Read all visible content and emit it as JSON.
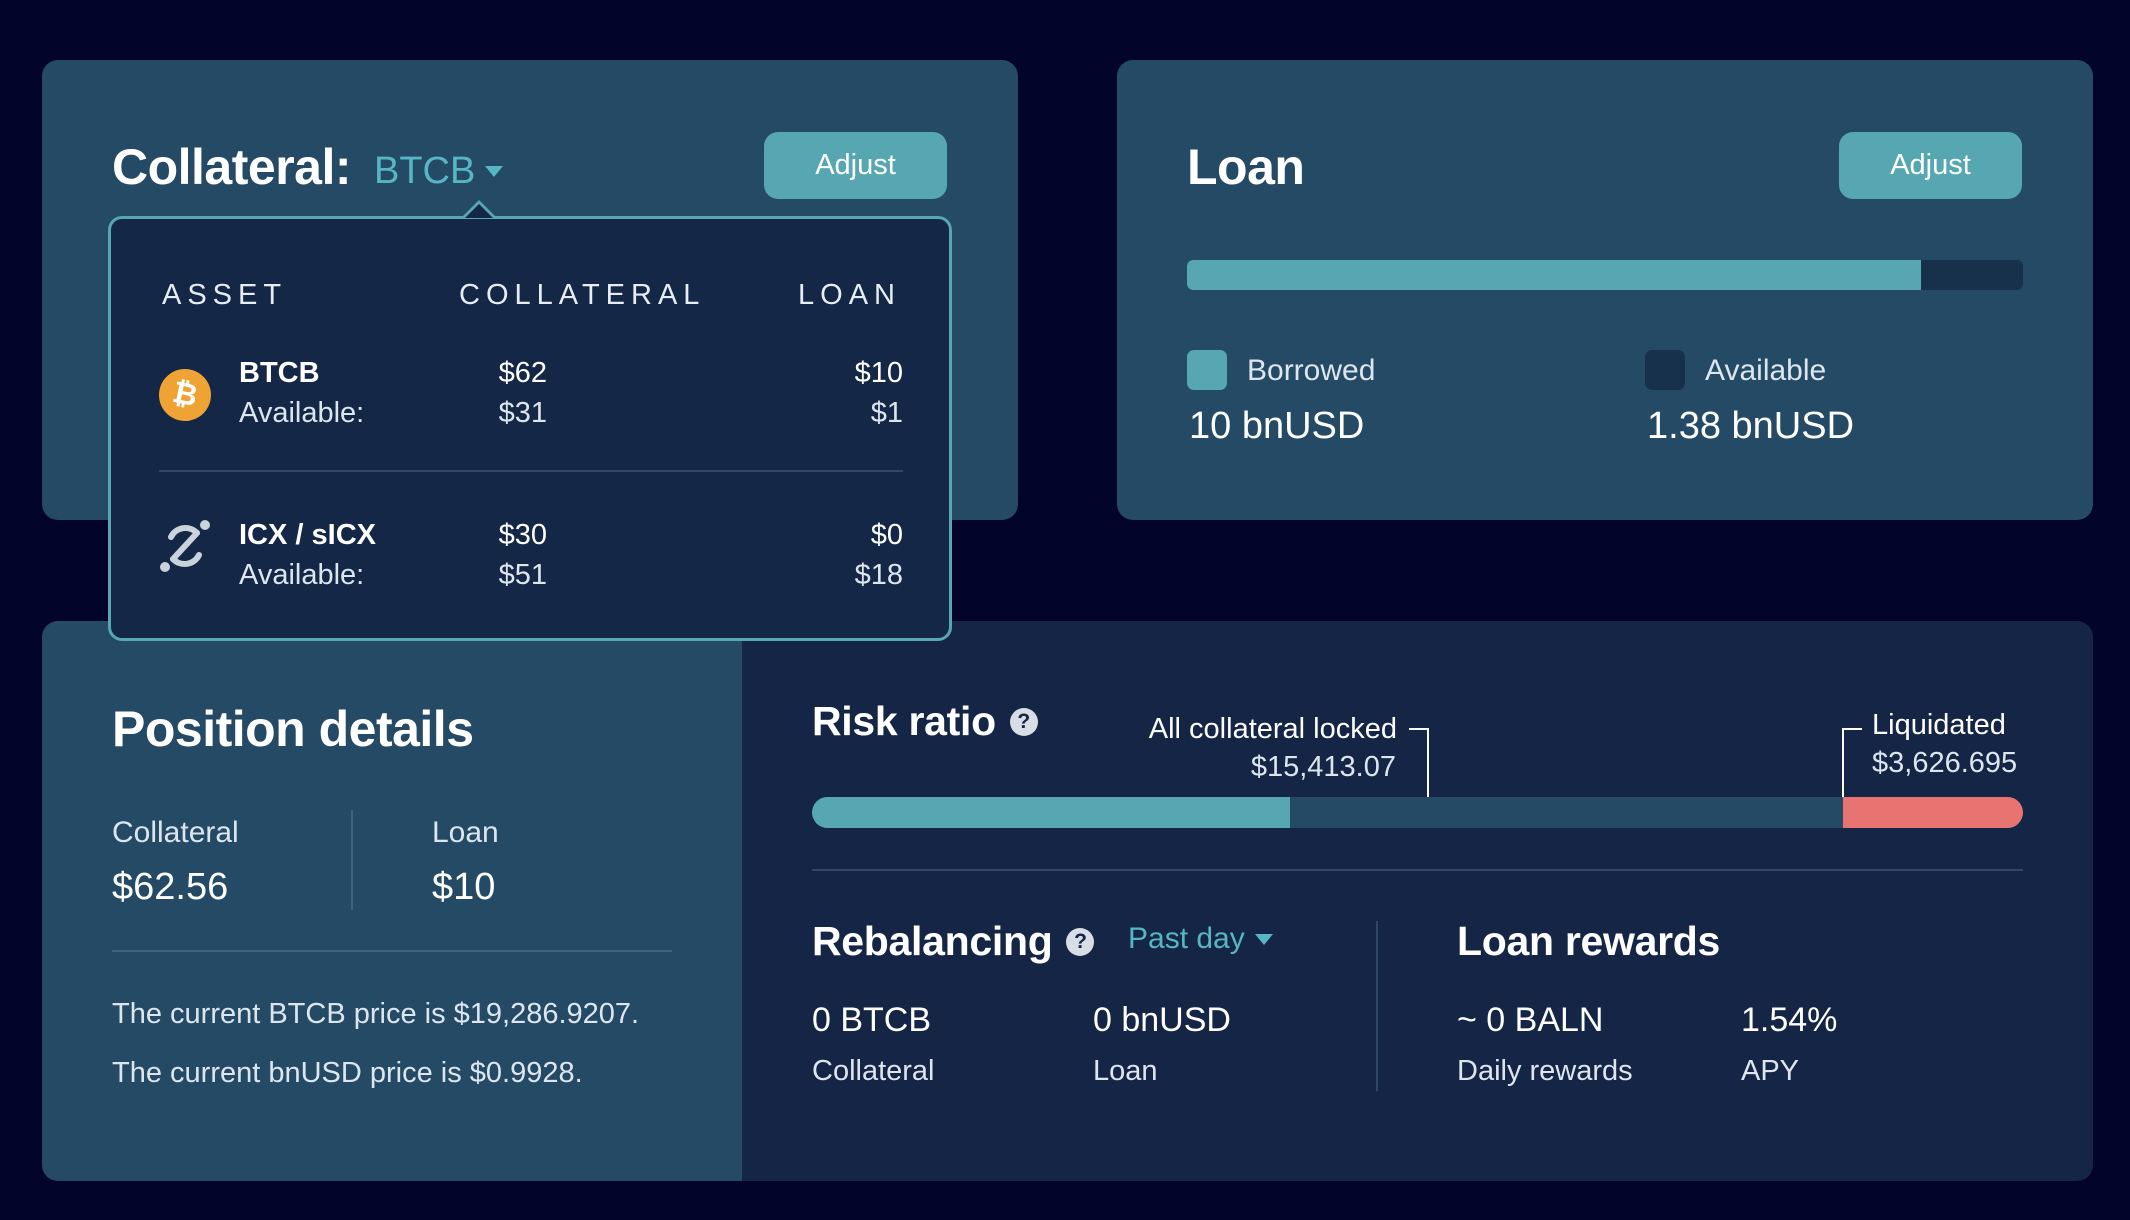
{
  "colors": {
    "teal": "#56a7b2",
    "panel_light": "#244a66",
    "panel_dark": "#152545",
    "danger": "#e87472",
    "background": "#02042a"
  },
  "collateral": {
    "title": "Collateral:",
    "selected_asset": "BTCB",
    "adjust_label": "Adjust",
    "dropdown": {
      "headers": [
        "ASSET",
        "COLLATERAL",
        "LOAN"
      ],
      "rows": [
        {
          "icon": "bitcoin-icon",
          "asset": "BTCB",
          "available_label": "Available:",
          "collateral": "$62",
          "collateral_available": "$31",
          "loan": "$10",
          "loan_available": "$1"
        },
        {
          "icon": "icx-icon",
          "asset": "ICX / sICX",
          "available_label": "Available:",
          "collateral": "$30",
          "collateral_available": "$51",
          "loan": "$0",
          "loan_available": "$18"
        }
      ]
    }
  },
  "loan": {
    "title": "Loan",
    "adjust_label": "Adjust",
    "borrowed_fraction": 0.878,
    "borrowed_label": "Borrowed",
    "borrowed_value": "10 bnUSD",
    "available_label": "Available",
    "available_value": "1.38 bnUSD"
  },
  "position": {
    "title": "Position details",
    "collateral_label": "Collateral",
    "collateral_value": "$62.56",
    "loan_label": "Loan",
    "loan_value": "$10",
    "price_note_1": "The current BTCB price is $19,286.9207.",
    "price_note_2": "The current bnUSD price is $0.9928."
  },
  "risk": {
    "title": "Risk ratio",
    "locked_label": "All collateral locked",
    "locked_value": "$15,413.07",
    "liquidated_label": "Liquidated",
    "liquidated_value": "$3,626.695",
    "fill_fraction": 0.395
  },
  "rebalancing": {
    "title": "Rebalancing",
    "period": "Past day",
    "collateral_value": "0 BTCB",
    "collateral_label": "Collateral",
    "loan_value": "0 bnUSD",
    "loan_label": "Loan"
  },
  "rewards": {
    "title": "Loan rewards",
    "daily_value": "~ 0 BALN",
    "daily_label": "Daily rewards",
    "apy_value": "1.54%",
    "apy_label": "APY"
  }
}
